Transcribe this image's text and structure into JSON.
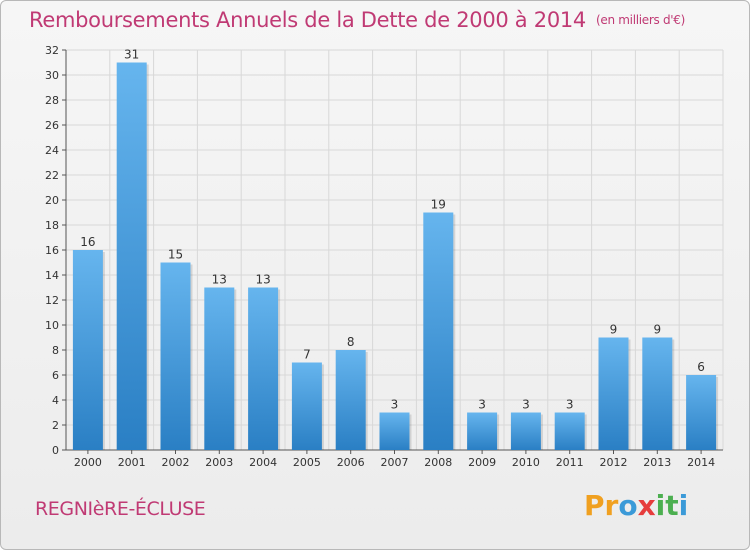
{
  "header": {
    "title": "Remboursements Annuels de la Dette de 2000 à 2014",
    "unit": "(en milliers d'€)"
  },
  "footer": {
    "commune": "REGNIèRE-ÉCLUSE"
  },
  "logo": {
    "letters": [
      "P",
      "r",
      "o",
      "x",
      "i",
      "t",
      "i"
    ],
    "colors": [
      "#f0a020",
      "#f0a020",
      "#3b9ad8",
      "#e63c3c",
      "#4caf50",
      "#4caf50",
      "#3b9ad8"
    ]
  },
  "colors": {
    "title": "#c03a74",
    "bar_light": "#66b5ee",
    "bar_dark": "#2a7fc4",
    "grid": "#d8d8d8"
  },
  "chart_data": {
    "type": "bar",
    "title": "Remboursements Annuels de la Dette de 2000 à 2014",
    "subtitle": "(en milliers d'€)",
    "xlabel": "",
    "ylabel": "",
    "categories": [
      "2000",
      "2001",
      "2002",
      "2003",
      "2004",
      "2005",
      "2006",
      "2007",
      "2008",
      "2009",
      "2010",
      "2011",
      "2012",
      "2013",
      "2014"
    ],
    "values": [
      16,
      31,
      15,
      13,
      13,
      7,
      8,
      3,
      19,
      3,
      3,
      3,
      9,
      9,
      6
    ],
    "ylim": [
      0,
      32
    ],
    "yticks": [
      0,
      2,
      4,
      6,
      8,
      10,
      12,
      14,
      16,
      18,
      20,
      22,
      24,
      26,
      28,
      30,
      32
    ],
    "grid": true,
    "legend": "none",
    "data_labels": true
  }
}
